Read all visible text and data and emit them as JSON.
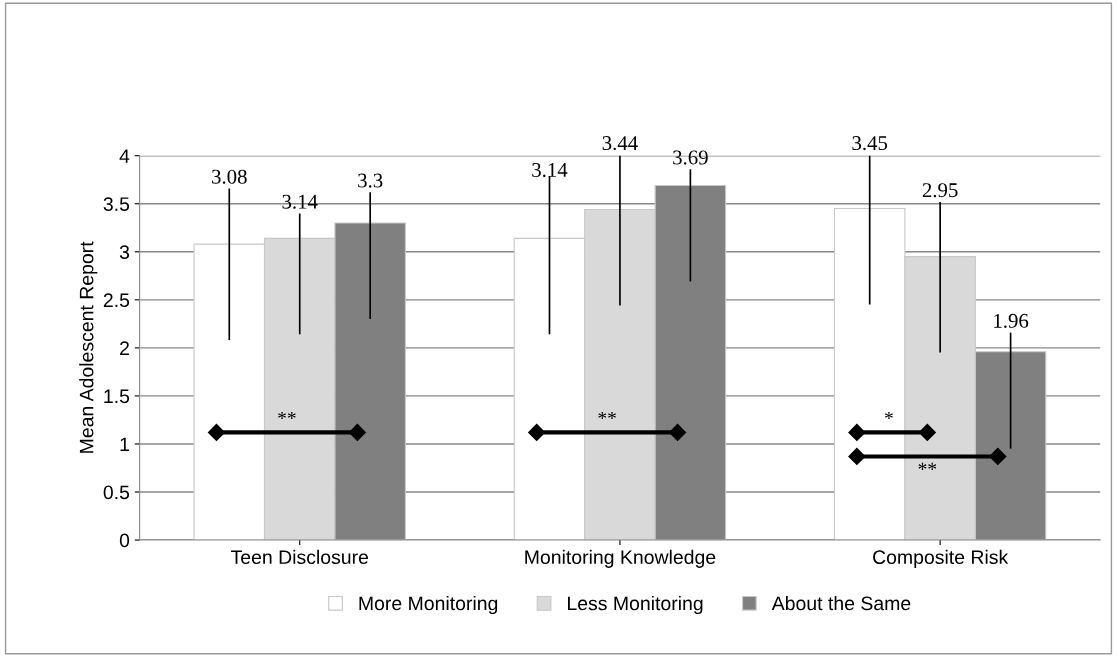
{
  "chart_data": {
    "type": "bar",
    "ylabel": "Mean Adolescent Report",
    "categories": [
      "Teen Disclosure",
      "Monitoring Knowledge",
      "Composite Risk"
    ],
    "series": [
      {
        "name": "More Monitoring",
        "color": "#ffffff",
        "values": [
          3.08,
          3.14,
          3.45
        ],
        "errors": [
          [
            2.09,
            3.65
          ],
          [
            2.15,
            3.78
          ],
          [
            2.46,
            4.0
          ]
        ]
      },
      {
        "name": "Less Monitoring",
        "color": "#d9d9d9",
        "values": [
          3.14,
          3.44,
          2.95
        ],
        "errors": [
          [
            2.15,
            3.39
          ],
          [
            2.45,
            4.0
          ],
          [
            1.96,
            3.51
          ]
        ]
      },
      {
        "name": "About the Same",
        "color": "#808080",
        "values": [
          3.3,
          3.69,
          1.96
        ],
        "errors": [
          [
            2.31,
            3.61
          ],
          [
            2.7,
            3.85
          ],
          [
            0.96,
            2.15
          ]
        ]
      }
    ],
    "ylim": [
      0,
      4
    ],
    "yticks": [
      0,
      0.5,
      1,
      1.5,
      2,
      2.5,
      3,
      3.5,
      4
    ],
    "grid": "y",
    "legend": "bottom",
    "data_labels": true,
    "annotations": [
      "**",
      "**",
      "*",
      "**"
    ]
  }
}
